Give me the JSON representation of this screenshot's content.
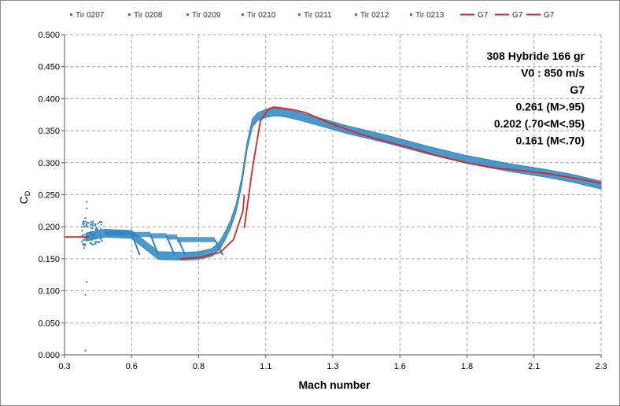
{
  "chart_data": {
    "type": "scatter",
    "title": "",
    "xlabel": "Mach number",
    "ylabel": "C",
    "ylabel_sub": "D",
    "xlim": [
      0.3,
      2.3
    ],
    "ylim": [
      0.0,
      0.5
    ],
    "x_ticks": [
      "0.3",
      "0.6",
      "0.8",
      "1.1",
      "1.3",
      "1.6",
      "1.8",
      "2.1",
      "2.3"
    ],
    "y_ticks": [
      "0.000",
      "0.050",
      "0.100",
      "0.150",
      "0.200",
      "0.250",
      "0.300",
      "0.350",
      "0.400",
      "0.450",
      "0.500"
    ],
    "grid": "dashed",
    "legend_position": "top",
    "legend": [
      {
        "name": "Tir 0207",
        "kind": "marker",
        "color": "#2e86c1"
      },
      {
        "name": "Tir 0208",
        "kind": "marker",
        "color": "#2e86c1"
      },
      {
        "name": "Tir 0209",
        "kind": "marker",
        "color": "#2e86c1"
      },
      {
        "name": "Tir 0210",
        "kind": "marker",
        "color": "#2e86c1"
      },
      {
        "name": "Tir 0211",
        "kind": "marker",
        "color": "#2e86c1"
      },
      {
        "name": "Tir 0212",
        "kind": "marker",
        "color": "#2e86c1"
      },
      {
        "name": "Tir 0213",
        "kind": "marker",
        "color": "#2e86c1"
      },
      {
        "name": "G7",
        "kind": "line",
        "color": "#d62728"
      },
      {
        "name": "G7",
        "kind": "line",
        "color": "#d62728"
      },
      {
        "name": "G7",
        "kind": "line",
        "color": "#d62728"
      }
    ],
    "annotations": [
      "308 Hybride 166 gr",
      "V0 : 850 m/s",
      "G7",
      "0.261 (M>.95)",
      "0.202 (.70<M<.95)",
      "0.161 (M<.70)"
    ],
    "measured_band": {
      "color": "#2e86c1",
      "x": [
        0.38,
        0.45,
        0.55,
        0.65,
        0.75,
        0.8,
        0.85,
        0.88,
        0.9,
        0.92,
        0.94,
        0.96,
        0.98,
        1.0,
        1.02,
        1.05,
        1.08,
        1.1,
        1.13,
        1.17,
        1.25,
        1.35,
        1.5,
        1.65,
        1.8,
        1.95,
        2.1,
        2.2,
        2.3
      ],
      "y": [
        0.184,
        0.19,
        0.188,
        0.155,
        0.154,
        0.155,
        0.16,
        0.172,
        0.187,
        0.205,
        0.23,
        0.27,
        0.325,
        0.362,
        0.372,
        0.377,
        0.379,
        0.379,
        0.377,
        0.373,
        0.364,
        0.352,
        0.337,
        0.32,
        0.305,
        0.293,
        0.283,
        0.275,
        0.265
      ],
      "band_width": 0.006,
      "plateaus": [
        {
          "y": 0.19,
          "x_start": 0.45,
          "x_end": 0.55
        },
        {
          "y": 0.188,
          "x_start": 0.55,
          "x_end": 0.62
        },
        {
          "y": 0.186,
          "x_start": 0.62,
          "x_end": 0.68
        },
        {
          "y": 0.184,
          "x_start": 0.68,
          "x_end": 0.72
        },
        {
          "y": 0.18,
          "x_start": 0.72,
          "x_end": 0.86
        }
      ],
      "outliers": [
        [
          0.38,
          0.24
        ],
        [
          0.38,
          0.23
        ],
        [
          0.375,
          0.215
        ],
        [
          0.37,
          0.168
        ],
        [
          0.38,
          0.115
        ],
        [
          0.375,
          0.095
        ],
        [
          0.375,
          0.008
        ]
      ]
    },
    "g7_curves": [
      {
        "name": "G7",
        "x": [
          0.3,
          0.39
        ],
        "y": [
          0.184,
          0.184
        ]
      },
      {
        "name": "G7",
        "x": [
          0.73,
          0.8,
          0.88,
          0.93,
          0.965,
          0.97
        ],
        "y": [
          0.15,
          0.152,
          0.16,
          0.18,
          0.225,
          0.25
        ]
      },
      {
        "name": "G7",
        "x": [
          0.97,
          1.0,
          1.03,
          1.06,
          1.08,
          1.1,
          1.15,
          1.2,
          1.3,
          1.4,
          1.5,
          1.6,
          1.7,
          1.8,
          1.9,
          2.0,
          2.1,
          2.2,
          2.3
        ],
        "y": [
          0.198,
          0.29,
          0.365,
          0.384,
          0.387,
          0.386,
          0.383,
          0.378,
          0.36,
          0.345,
          0.333,
          0.322,
          0.31,
          0.3,
          0.292,
          0.288,
          0.283,
          0.276,
          0.268
        ]
      }
    ]
  }
}
